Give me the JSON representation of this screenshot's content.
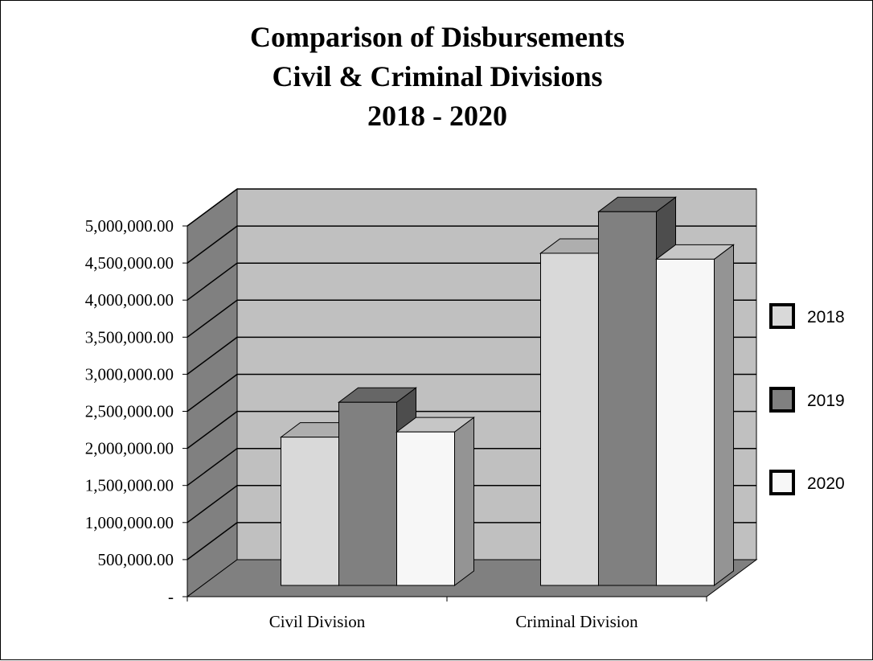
{
  "chart_data": {
    "type": "bar",
    "title_lines": [
      "Comparison of Disbursements",
      "Civil & Criminal Divisions",
      "2018 - 2020"
    ],
    "categories": [
      "Civil Division",
      "Criminal Division"
    ],
    "series": [
      {
        "name": "2018",
        "values": [
          2000000,
          4480000
        ],
        "color": "#d9d9d9"
      },
      {
        "name": "2019",
        "values": [
          2470000,
          5040000
        ],
        "color": "#808080"
      },
      {
        "name": "2020",
        "values": [
          2070000,
          4400000
        ],
        "color": "#f7f7f7"
      }
    ],
    "y_ticks": [
      {
        "value": 0,
        "label": "-"
      },
      {
        "value": 500000,
        "label": "500,000.00"
      },
      {
        "value": 1000000,
        "label": "1,000,000.00"
      },
      {
        "value": 1500000,
        "label": "1,500,000.00"
      },
      {
        "value": 2000000,
        "label": "2,000,000.00"
      },
      {
        "value": 2500000,
        "label": "2,500,000.00"
      },
      {
        "value": 3000000,
        "label": "3,000,000.00"
      },
      {
        "value": 3500000,
        "label": "3,500,000.00"
      },
      {
        "value": 4000000,
        "label": "4,000,000.00"
      },
      {
        "value": 4500000,
        "label": "4,500,000.00"
      },
      {
        "value": 5000000,
        "label": "5,000,000.00"
      }
    ],
    "ylim": [
      0,
      5000000
    ],
    "grid": true,
    "legend_position": "right",
    "style": "3d",
    "colors": {
      "back_wall": "#c0c0c0",
      "side_wall": "#808080",
      "floor": "#808080"
    }
  }
}
